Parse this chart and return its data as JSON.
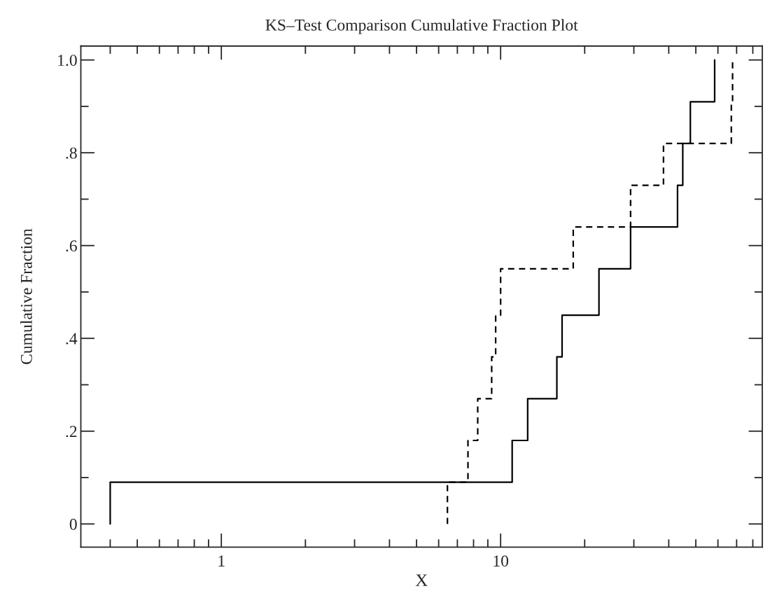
{
  "chart_data": {
    "type": "step",
    "title": "KS–Test Comparison Cumulative Fraction Plot",
    "xlabel": "X",
    "ylabel": "Cumulative Fraction",
    "series": [
      {
        "color": "#000000",
        "line_style": "solid",
        "x": [
          0.4,
          0.4,
          11.0,
          12.5,
          15.9,
          16.6,
          22.5,
          29.2,
          43.0,
          44.9,
          47.8,
          58.4
        ],
        "values": [
          0,
          0.09,
          0.18,
          0.27,
          0.36,
          0.45,
          0.55,
          0.64,
          0.73,
          0.82,
          0.91,
          1.0
        ]
      },
      {
        "color": "#000000",
        "line_style": "dashed",
        "x": [
          6.45,
          6.45,
          7.64,
          8.28,
          9.29,
          9.6,
          10.0,
          18.2,
          29.2,
          38.3,
          67.0,
          67.7
        ],
        "values": [
          0,
          0.09,
          0.18,
          0.27,
          0.36,
          0.45,
          0.55,
          0.64,
          0.73,
          0.82,
          0.91,
          1.0
        ]
      }
    ],
    "log": "x",
    "xlim": [
      0.314,
      86.5
    ],
    "ylim": [
      -0.05,
      1.03
    ],
    "xticks": [
      {
        "value": 0.4,
        "label": null
      },
      {
        "value": 0.5,
        "label": null
      },
      {
        "value": 0.6,
        "label": null
      },
      {
        "value": 0.7,
        "label": null
      },
      {
        "value": 0.8,
        "label": null
      },
      {
        "value": 0.9,
        "label": null
      },
      1,
      {
        "value": 2,
        "label": null
      },
      {
        "value": 3,
        "label": null
      },
      {
        "value": 4,
        "label": null
      },
      {
        "value": 5,
        "label": null
      },
      {
        "value": 6,
        "label": null
      },
      {
        "value": 7,
        "label": null
      },
      {
        "value": 8,
        "label": null
      },
      {
        "value": 9,
        "label": null
      },
      10,
      {
        "value": 20,
        "label": null
      },
      {
        "value": 30,
        "label": null
      },
      {
        "value": 40,
        "label": null
      },
      {
        "value": 50,
        "label": null
      },
      {
        "value": 60,
        "label": null
      },
      {
        "value": 70,
        "label": null
      },
      {
        "value": 80,
        "label": null
      }
    ],
    "yticks": [
      0,
      {
        "value": 0.1,
        "label": null
      },
      {
        "value": 0.2,
        "label": ".2"
      },
      {
        "value": 0.3,
        "label": null
      },
      {
        "value": 0.4,
        "label": ".4"
      },
      {
        "value": 0.5,
        "label": null
      },
      {
        "value": 0.6,
        "label": ".6"
      },
      {
        "value": 0.7,
        "label": null
      },
      {
        "value": 0.8,
        "label": ".8"
      },
      {
        "value": 0.9,
        "label": null
      },
      {
        "value": 1.0,
        "label": "1.0"
      }
    ],
    "grid": false
  }
}
